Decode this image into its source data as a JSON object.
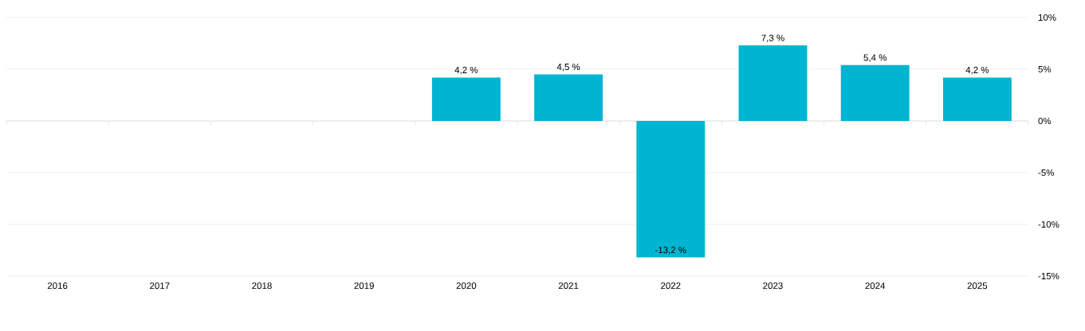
{
  "chart_data": {
    "type": "bar",
    "categories": [
      "2016",
      "2017",
      "2018",
      "2019",
      "2020",
      "2021",
      "2022",
      "2023",
      "2024",
      "2025"
    ],
    "series": [
      {
        "color": "#00b5d1",
        "values": [
          null,
          null,
          null,
          null,
          4.2,
          4.5,
          -13.2,
          7.3,
          5.4,
          4.2
        ],
        "value_labels": [
          null,
          null,
          null,
          null,
          "4,2 %",
          "4,5 %",
          "-13,2 %",
          "7,3 %",
          "5,4 %",
          "4,2 %"
        ]
      }
    ],
    "ylim": [
      -15,
      10
    ],
    "yticks": [
      {
        "value": -15,
        "label": "-15%"
      },
      {
        "value": -10,
        "label": "-10%"
      },
      {
        "value": -5,
        "label": "-5%"
      },
      {
        "value": 0,
        "label": "0%"
      },
      {
        "value": 5,
        "label": "5%"
      },
      {
        "value": 10,
        "label": "10%"
      }
    ],
    "grid": "y"
  }
}
